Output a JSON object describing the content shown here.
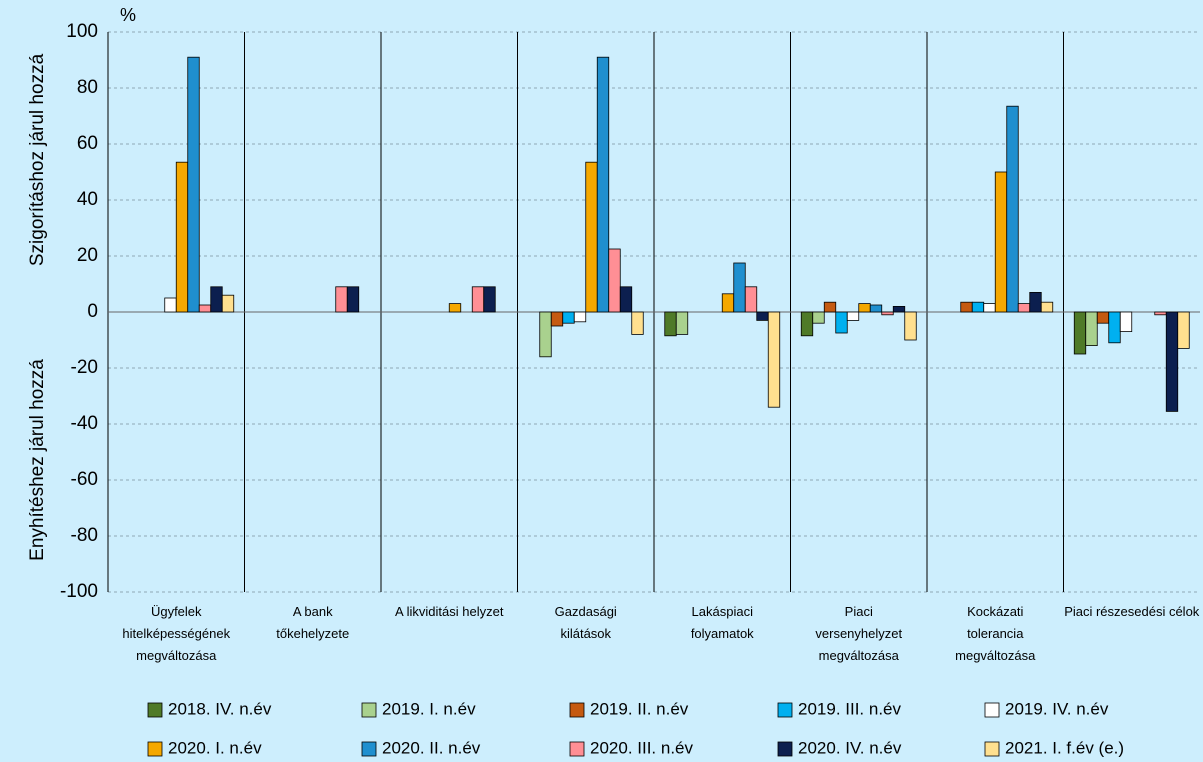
{
  "chart_data": {
    "type": "bar",
    "unit": "%",
    "y_label_upper": "Szigorításhoz járul hozzá",
    "y_label_lower": "Enyhítéshez járul hozzá",
    "categories": [
      "Ügyfelek hitelképességének megváltozása",
      "A bank tőkehelyzete",
      "A likviditási helyzet",
      "Gazdasági kilátások",
      "Lakáspiaci folyamatok",
      "Piaci versenyhelyzet megváltozása",
      "Kockázati tolerancia megváltozása",
      "Piaci részesedési célok"
    ],
    "series": [
      {
        "name": "2018. IV. n.év",
        "color": "#4f7a28",
        "values": [
          0,
          0,
          0,
          0,
          -8.5,
          -8.5,
          0,
          -15
        ]
      },
      {
        "name": "2019. I. n.év",
        "color": "#a9d18e",
        "values": [
          0,
          0,
          0,
          -16,
          -8,
          -4,
          0,
          -12
        ]
      },
      {
        "name": "2019. II. n.év",
        "color": "#c55a11",
        "values": [
          0,
          0,
          0,
          -5,
          0,
          3.5,
          3.5,
          -4
        ]
      },
      {
        "name": "2019. III. n.év",
        "color": "#00b0f0",
        "values": [
          0,
          0,
          0,
          -4,
          0,
          -7.5,
          3.5,
          -11
        ]
      },
      {
        "name": "2019. IV. n.év",
        "color": "#ffffff",
        "values": [
          5,
          0,
          0,
          -3.5,
          0,
          -3,
          3,
          -7
        ]
      },
      {
        "name": "2020. I. n.év",
        "color": "#f5a800",
        "values": [
          53.5,
          0,
          3,
          53.5,
          6.5,
          3,
          50,
          0
        ]
      },
      {
        "name": "2020. II. n.év",
        "color": "#1f8fcf",
        "values": [
          91,
          0,
          0,
          91,
          17.5,
          2.5,
          73.5,
          0
        ]
      },
      {
        "name": "2020. III. n.év",
        "color": "#ff8f95",
        "values": [
          2.5,
          9,
          9,
          22.5,
          9,
          -1,
          3,
          -1
        ]
      },
      {
        "name": "2020. IV. n.év",
        "color": "#0c1f4f",
        "values": [
          9,
          9,
          9,
          9,
          -3,
          2,
          7,
          -35.5
        ]
      },
      {
        "name": "2021. I. f.év (e.)",
        "color": "#ffe08f",
        "values": [
          6,
          0,
          0,
          -8,
          -34,
          -10,
          3.5,
          -13
        ]
      }
    ],
    "ylim": [
      -100,
      100
    ],
    "yticks": [
      -100,
      -80,
      -60,
      -40,
      -20,
      0,
      20,
      40,
      60,
      80,
      100
    ],
    "grid": true
  }
}
